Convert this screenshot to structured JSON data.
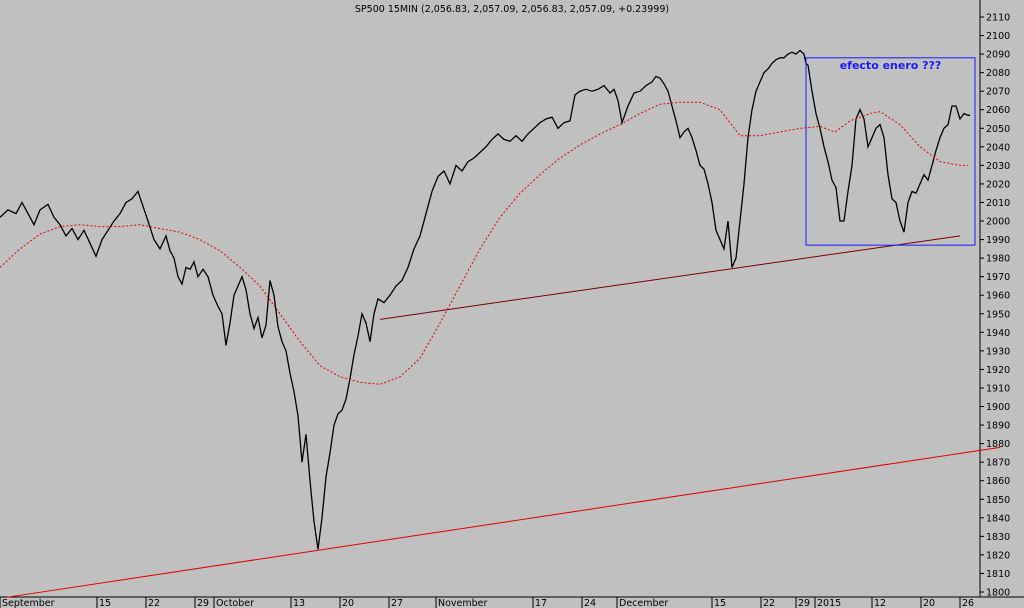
{
  "chart_data": {
    "type": "line",
    "title": "SP500 15MIN (2,056.83, 2,057.09, 2,056.83, 2,057.09, +0.23999)",
    "ylim": [
      1795,
      2118
    ],
    "yticks": [
      2110,
      2100,
      2090,
      2080,
      2070,
      2060,
      2050,
      2040,
      2030,
      2020,
      2010,
      2000,
      1990,
      1980,
      1970,
      1960,
      1950,
      1940,
      1930,
      1920,
      1910,
      1900,
      1890,
      1880,
      1870,
      1860,
      1850,
      1840,
      1830,
      1820,
      1810,
      1800
    ],
    "x_range": [
      0,
      1000
    ],
    "x_labels": [
      {
        "label": "September",
        "x": 0
      },
      {
        "label": "15",
        "x": 97
      },
      {
        "label": "22",
        "x": 146
      },
      {
        "label": "29",
        "x": 195
      },
      {
        "label": "October",
        "x": 214
      },
      {
        "label": "13",
        "x": 291
      },
      {
        "label": "20",
        "x": 340
      },
      {
        "label": "27",
        "x": 389
      },
      {
        "label": "November",
        "x": 436
      },
      {
        "label": "17",
        "x": 533
      },
      {
        "label": "24",
        "x": 582
      },
      {
        "label": "December",
        "x": 617
      },
      {
        "label": "15",
        "x": 712
      },
      {
        "label": "22",
        "x": 761
      },
      {
        "label": "29",
        "x": 796
      },
      {
        "label": "2015",
        "x": 815
      },
      {
        "label": "12",
        "x": 872
      },
      {
        "label": "20",
        "x": 921
      },
      {
        "label": "26",
        "x": 960
      }
    ],
    "series": [
      {
        "color": "#000000",
        "points": [
          [
            0,
            2002
          ],
          [
            8,
            2006
          ],
          [
            16,
            2004
          ],
          [
            22,
            2010
          ],
          [
            28,
            2004
          ],
          [
            34,
            1998
          ],
          [
            40,
            2006
          ],
          [
            48,
            2009
          ],
          [
            54,
            2002
          ],
          [
            60,
            1998
          ],
          [
            66,
            1992
          ],
          [
            72,
            1996
          ],
          [
            78,
            1990
          ],
          [
            84,
            1995
          ],
          [
            90,
            1988
          ],
          [
            96,
            1981
          ],
          [
            102,
            1990
          ],
          [
            108,
            1995
          ],
          [
            114,
            2000
          ],
          [
            120,
            2004
          ],
          [
            126,
            2010
          ],
          [
            132,
            2012
          ],
          [
            138,
            2016
          ],
          [
            143,
            2008
          ],
          [
            148,
            2000
          ],
          [
            154,
            1990
          ],
          [
            160,
            1985
          ],
          [
            166,
            1992
          ],
          [
            170,
            1984
          ],
          [
            174,
            1980
          ],
          [
            178,
            1970
          ],
          [
            182,
            1966
          ],
          [
            186,
            1975
          ],
          [
            190,
            1974
          ],
          [
            194,
            1978
          ],
          [
            198,
            1970
          ],
          [
            203,
            1974
          ],
          [
            208,
            1970
          ],
          [
            213,
            1960
          ],
          [
            218,
            1954
          ],
          [
            222,
            1950
          ],
          [
            226,
            1933
          ],
          [
            230,
            1945
          ],
          [
            234,
            1960
          ],
          [
            238,
            1965
          ],
          [
            242,
            1970
          ],
          [
            246,
            1963
          ],
          [
            250,
            1950
          ],
          [
            254,
            1942
          ],
          [
            258,
            1948
          ],
          [
            262,
            1937
          ],
          [
            266,
            1944
          ],
          [
            270,
            1968
          ],
          [
            274,
            1960
          ],
          [
            278,
            1943
          ],
          [
            282,
            1935
          ],
          [
            286,
            1930
          ],
          [
            290,
            1918
          ],
          [
            294,
            1908
          ],
          [
            298,
            1895
          ],
          [
            302,
            1870
          ],
          [
            306,
            1885
          ],
          [
            310,
            1860
          ],
          [
            314,
            1838
          ],
          [
            318,
            1823
          ],
          [
            322,
            1840
          ],
          [
            326,
            1862
          ],
          [
            330,
            1875
          ],
          [
            334,
            1890
          ],
          [
            338,
            1896
          ],
          [
            342,
            1898
          ],
          [
            346,
            1904
          ],
          [
            350,
            1915
          ],
          [
            354,
            1928
          ],
          [
            358,
            1938
          ],
          [
            362,
            1950
          ],
          [
            366,
            1945
          ],
          [
            370,
            1935
          ],
          [
            374,
            1950
          ],
          [
            378,
            1958
          ],
          [
            384,
            1956
          ],
          [
            390,
            1960
          ],
          [
            396,
            1965
          ],
          [
            402,
            1968
          ],
          [
            408,
            1975
          ],
          [
            414,
            1985
          ],
          [
            420,
            1992
          ],
          [
            426,
            2004
          ],
          [
            432,
            2016
          ],
          [
            438,
            2024
          ],
          [
            444,
            2027
          ],
          [
            450,
            2020
          ],
          [
            456,
            2030
          ],
          [
            462,
            2027
          ],
          [
            468,
            2032
          ],
          [
            474,
            2034
          ],
          [
            480,
            2037
          ],
          [
            486,
            2040
          ],
          [
            492,
            2044
          ],
          [
            498,
            2047
          ],
          [
            504,
            2044
          ],
          [
            510,
            2043
          ],
          [
            516,
            2046
          ],
          [
            522,
            2043
          ],
          [
            528,
            2047
          ],
          [
            534,
            2050
          ],
          [
            540,
            2053
          ],
          [
            546,
            2055
          ],
          [
            552,
            2056
          ],
          [
            558,
            2050
          ],
          [
            564,
            2053
          ],
          [
            570,
            2054
          ],
          [
            575,
            2068
          ],
          [
            580,
            2070
          ],
          [
            586,
            2071
          ],
          [
            592,
            2070
          ],
          [
            598,
            2071
          ],
          [
            604,
            2073
          ],
          [
            610,
            2069
          ],
          [
            614,
            2071
          ],
          [
            618,
            2065
          ],
          [
            622,
            2053
          ],
          [
            628,
            2062
          ],
          [
            634,
            2069
          ],
          [
            640,
            2070
          ],
          [
            646,
            2073
          ],
          [
            652,
            2075
          ],
          [
            656,
            2078
          ],
          [
            660,
            2077
          ],
          [
            664,
            2074
          ],
          [
            668,
            2070
          ],
          [
            672,
            2062
          ],
          [
            676,
            2054
          ],
          [
            680,
            2045
          ],
          [
            684,
            2048
          ],
          [
            688,
            2050
          ],
          [
            692,
            2045
          ],
          [
            696,
            2038
          ],
          [
            700,
            2030
          ],
          [
            704,
            2028
          ],
          [
            708,
            2020
          ],
          [
            712,
            2010
          ],
          [
            716,
            1995
          ],
          [
            720,
            1990
          ],
          [
            724,
            1985
          ],
          [
            728,
            2000
          ],
          [
            732,
            1975
          ],
          [
            736,
            1980
          ],
          [
            740,
            2000
          ],
          [
            744,
            2020
          ],
          [
            748,
            2045
          ],
          [
            752,
            2060
          ],
          [
            756,
            2070
          ],
          [
            760,
            2075
          ],
          [
            764,
            2080
          ],
          [
            768,
            2082
          ],
          [
            772,
            2085
          ],
          [
            776,
            2087
          ],
          [
            780,
            2088
          ],
          [
            784,
            2088
          ],
          [
            788,
            2090
          ],
          [
            792,
            2091
          ],
          [
            796,
            2090
          ],
          [
            800,
            2092
          ],
          [
            804,
            2090
          ],
          [
            806,
            2085
          ],
          [
            808,
            2084
          ],
          [
            812,
            2070
          ],
          [
            816,
            2058
          ],
          [
            820,
            2050
          ],
          [
            824,
            2040
          ],
          [
            828,
            2032
          ],
          [
            832,
            2022
          ],
          [
            836,
            2018
          ],
          [
            840,
            2000
          ],
          [
            844,
            2000
          ],
          [
            848,
            2016
          ],
          [
            852,
            2030
          ],
          [
            856,
            2055
          ],
          [
            860,
            2060
          ],
          [
            864,
            2055
          ],
          [
            868,
            2040
          ],
          [
            872,
            2045
          ],
          [
            876,
            2050
          ],
          [
            880,
            2052
          ],
          [
            884,
            2045
          ],
          [
            888,
            2025
          ],
          [
            892,
            2012
          ],
          [
            896,
            2010
          ],
          [
            900,
            2000
          ],
          [
            904,
            1994
          ],
          [
            908,
            2010
          ],
          [
            912,
            2016
          ],
          [
            916,
            2015
          ],
          [
            920,
            2020
          ],
          [
            924,
            2025
          ],
          [
            928,
            2022
          ],
          [
            932,
            2030
          ],
          [
            936,
            2038
          ],
          [
            940,
            2045
          ],
          [
            944,
            2050
          ],
          [
            948,
            2052
          ],
          [
            952,
            2062
          ],
          [
            956,
            2062
          ],
          [
            960,
            2055
          ],
          [
            964,
            2058
          ],
          [
            968,
            2057
          ],
          [
            970,
            2057
          ]
        ]
      },
      {
        "color": "#e00000",
        "points": [
          [
            0,
            1975
          ],
          [
            20,
            1985
          ],
          [
            40,
            1993
          ],
          [
            60,
            1997
          ],
          [
            80,
            1998
          ],
          [
            100,
            1997
          ],
          [
            120,
            1997
          ],
          [
            140,
            1998
          ],
          [
            160,
            1996
          ],
          [
            180,
            1994
          ],
          [
            200,
            1990
          ],
          [
            220,
            1984
          ],
          [
            240,
            1975
          ],
          [
            260,
            1965
          ],
          [
            280,
            1950
          ],
          [
            300,
            1935
          ],
          [
            320,
            1922
          ],
          [
            340,
            1916
          ],
          [
            360,
            1913
          ],
          [
            380,
            1912
          ],
          [
            400,
            1916
          ],
          [
            420,
            1926
          ],
          [
            440,
            1945
          ],
          [
            460,
            1965
          ],
          [
            480,
            1985
          ],
          [
            500,
            2002
          ],
          [
            520,
            2015
          ],
          [
            540,
            2025
          ],
          [
            560,
            2034
          ],
          [
            580,
            2041
          ],
          [
            600,
            2047
          ],
          [
            620,
            2052
          ],
          [
            640,
            2058
          ],
          [
            660,
            2063
          ],
          [
            680,
            2064
          ],
          [
            700,
            2064
          ],
          [
            720,
            2060
          ],
          [
            740,
            2046
          ],
          [
            760,
            2046
          ],
          [
            780,
            2048
          ],
          [
            800,
            2050
          ],
          [
            820,
            2051
          ],
          [
            835,
            2048
          ],
          [
            850,
            2054
          ],
          [
            870,
            2058
          ],
          [
            880,
            2059
          ],
          [
            900,
            2052
          ],
          [
            920,
            2040
          ],
          [
            940,
            2032
          ],
          [
            960,
            2030
          ],
          [
            968,
            2030
          ]
        ]
      }
    ],
    "trendlines": [
      {
        "color": "#e00000",
        "from": [
          5,
          1797
        ],
        "to": [
          1000,
          1878
        ]
      },
      {
        "color": "#7a0000",
        "from": [
          380,
          1947
        ],
        "to": [
          960,
          1992
        ]
      }
    ],
    "annotation": {
      "text": "efecto enero ???",
      "color": "#1a1aff",
      "box": {
        "x0": 806,
        "y0": 1987,
        "x1": 975,
        "y1": 2088
      }
    }
  }
}
